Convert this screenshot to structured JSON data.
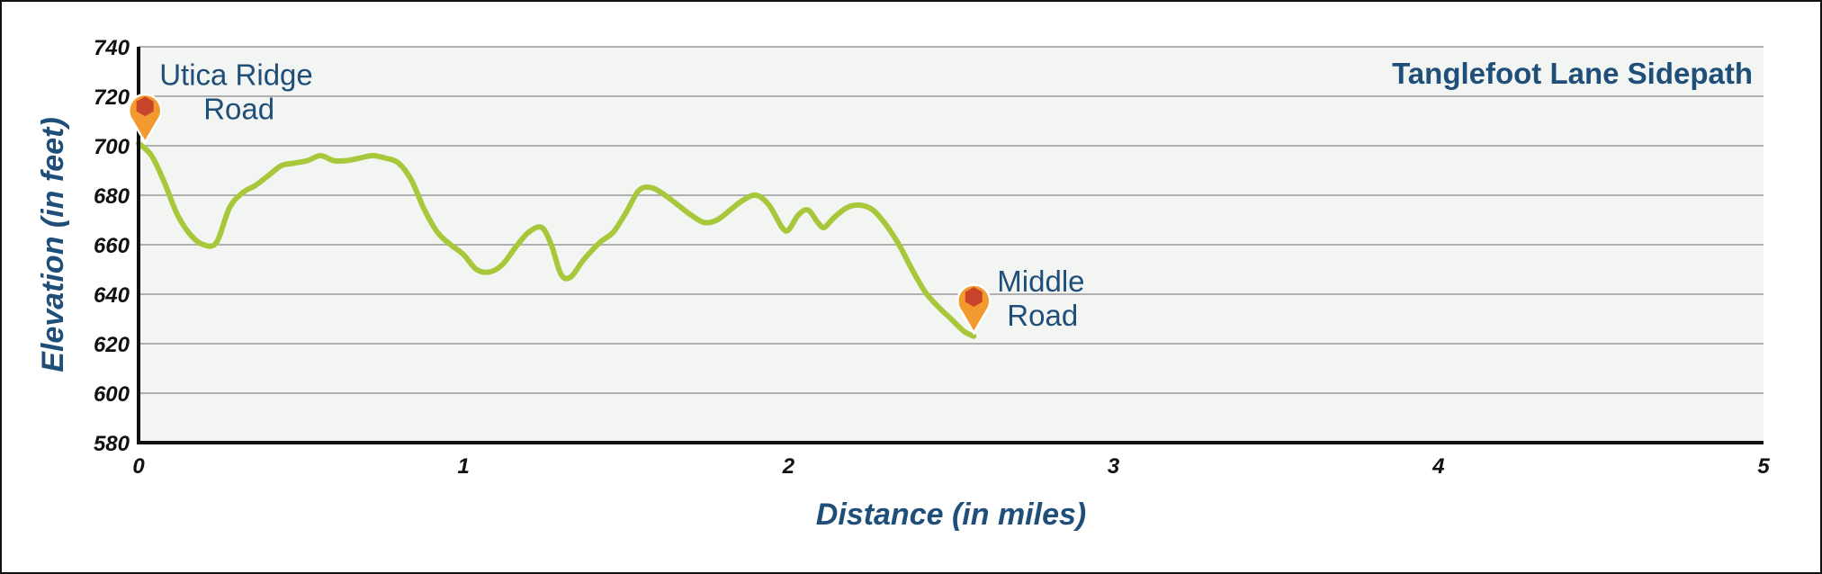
{
  "chart_data": {
    "type": "line",
    "title": "Tanglefoot Lane Sidepath",
    "xlabel": "Distance (in miles)",
    "ylabel": "Elevation (in feet)",
    "xlim": [
      0,
      5
    ],
    "ylim": [
      580,
      740
    ],
    "x_ticks": [
      "0",
      "1",
      "2",
      "3",
      "4",
      "5"
    ],
    "y_ticks": [
      "580",
      "600",
      "620",
      "640",
      "660",
      "680",
      "700",
      "720",
      "740"
    ],
    "grid": true,
    "colors": {
      "line": "#a8c83c",
      "plot_background": "#f3f5f3",
      "grid": "#9a9a9a",
      "text": "#1f4e79",
      "marker_fill": "#f39a2e",
      "marker_inner": "#c8452b"
    },
    "series": [
      {
        "values": [
          [
            0.0,
            701
          ],
          [
            0.04,
            696
          ],
          [
            0.08,
            685
          ],
          [
            0.12,
            672
          ],
          [
            0.16,
            664
          ],
          [
            0.2,
            660
          ],
          [
            0.24,
            661
          ],
          [
            0.28,
            675
          ],
          [
            0.32,
            681
          ],
          [
            0.36,
            684
          ],
          [
            0.4,
            688
          ],
          [
            0.44,
            692
          ],
          [
            0.48,
            693
          ],
          [
            0.52,
            694
          ],
          [
            0.56,
            696
          ],
          [
            0.6,
            694
          ],
          [
            0.64,
            694
          ],
          [
            0.68,
            695
          ],
          [
            0.72,
            696
          ],
          [
            0.76,
            695
          ],
          [
            0.8,
            693
          ],
          [
            0.84,
            686
          ],
          [
            0.88,
            674
          ],
          [
            0.92,
            665
          ],
          [
            0.96,
            660
          ],
          [
            1.0,
            656
          ],
          [
            1.04,
            650
          ],
          [
            1.08,
            649
          ],
          [
            1.12,
            652
          ],
          [
            1.16,
            659
          ],
          [
            1.2,
            665
          ],
          [
            1.24,
            667
          ],
          [
            1.27,
            660
          ],
          [
            1.3,
            648
          ],
          [
            1.33,
            647
          ],
          [
            1.37,
            654
          ],
          [
            1.42,
            661
          ],
          [
            1.46,
            665
          ],
          [
            1.5,
            673
          ],
          [
            1.54,
            682
          ],
          [
            1.58,
            683
          ],
          [
            1.62,
            680
          ],
          [
            1.66,
            676
          ],
          [
            1.7,
            672
          ],
          [
            1.74,
            669
          ],
          [
            1.78,
            670
          ],
          [
            1.82,
            674
          ],
          [
            1.86,
            678
          ],
          [
            1.9,
            680
          ],
          [
            1.94,
            676
          ],
          [
            1.98,
            667
          ],
          [
            2.0,
            666
          ],
          [
            2.03,
            672
          ],
          [
            2.06,
            674
          ],
          [
            2.09,
            669
          ],
          [
            2.11,
            667
          ],
          [
            2.14,
            671
          ],
          [
            2.18,
            675
          ],
          [
            2.22,
            676
          ],
          [
            2.26,
            674
          ],
          [
            2.3,
            668
          ],
          [
            2.34,
            660
          ],
          [
            2.38,
            650
          ],
          [
            2.42,
            641
          ],
          [
            2.46,
            635
          ],
          [
            2.5,
            630
          ],
          [
            2.54,
            625
          ],
          [
            2.57,
            623
          ]
        ]
      }
    ],
    "annotations": [
      {
        "label_lines": [
          "Utica Ridge",
          "Road"
        ],
        "x": 0.02,
        "y": 701
      },
      {
        "label_lines": [
          "Middle",
          "Road"
        ],
        "x": 2.57,
        "y": 624
      }
    ]
  }
}
